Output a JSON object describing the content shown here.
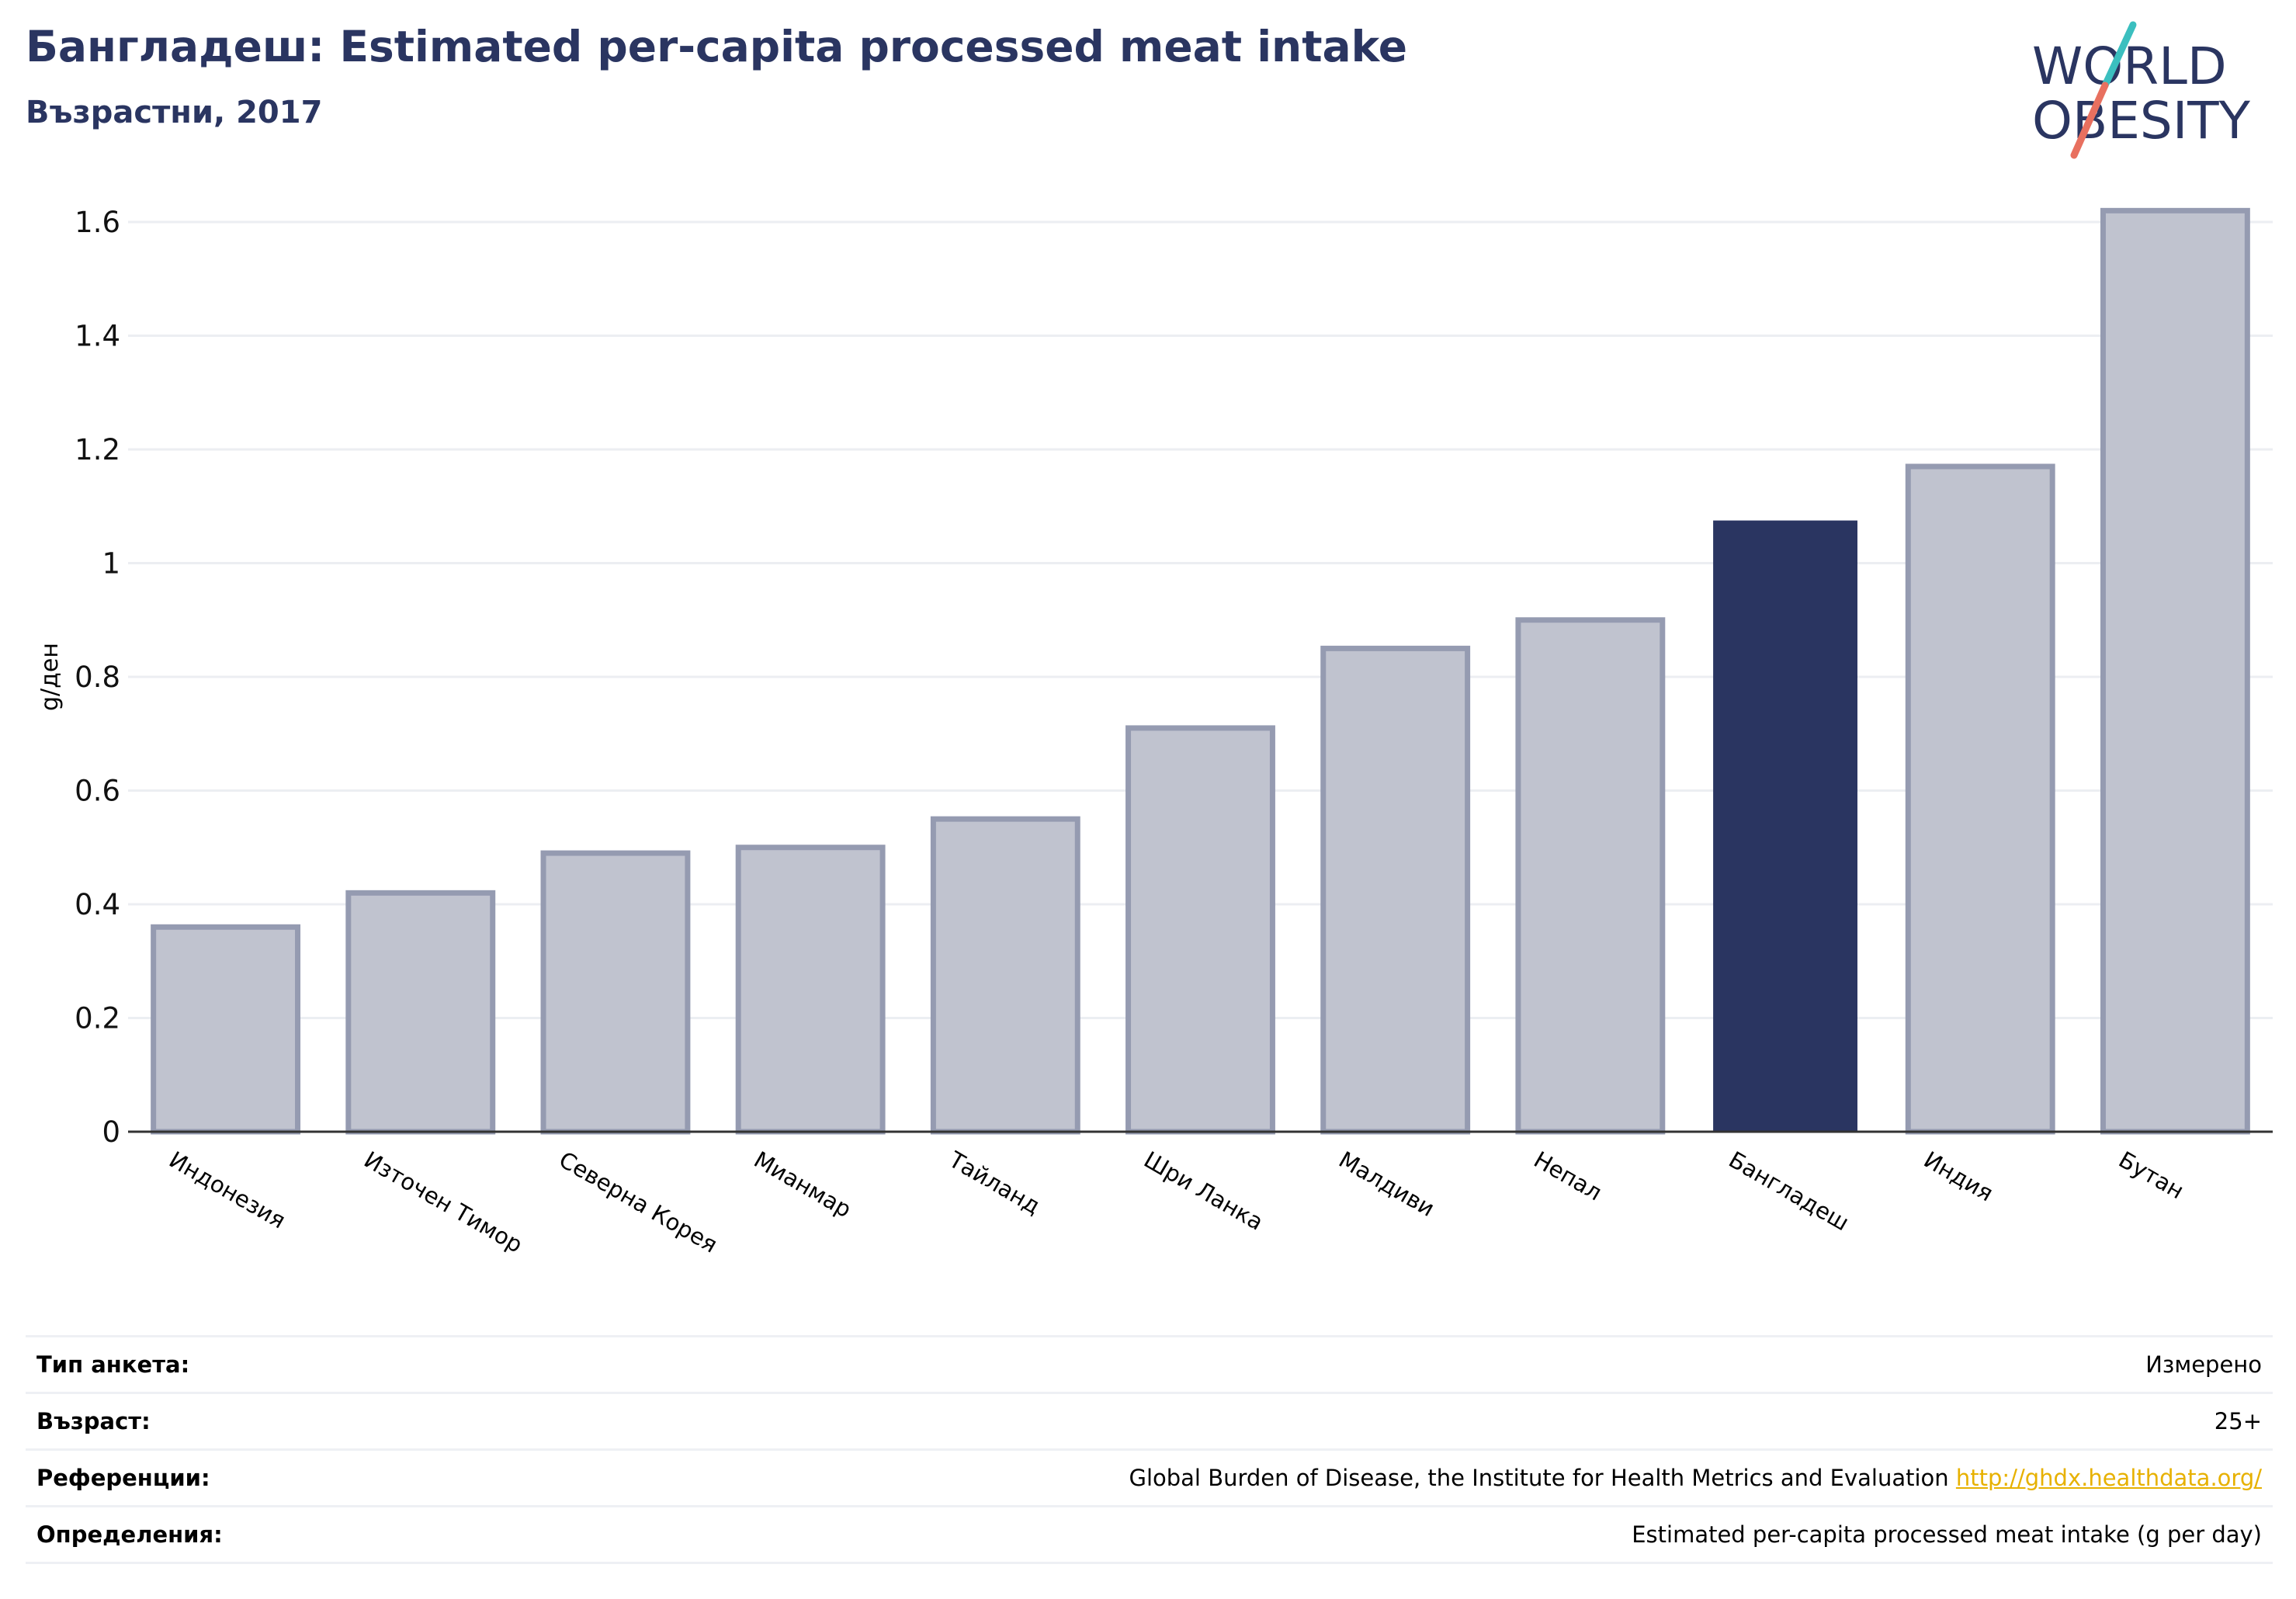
{
  "header": {
    "title": "Бангладеш: Estimated per-capita processed meat intake",
    "subtitle": "Възрастни, 2017"
  },
  "logo": {
    "line1": "WORLD",
    "line2": "OBESITY",
    "colors": {
      "text": "#2a3561",
      "slash_teal": "#3bbfbf",
      "slash_coral": "#e8705f"
    }
  },
  "chart_data": {
    "type": "bar",
    "categories": [
      "Индонезия",
      "Източен Тимор",
      "Северна Корея",
      "Мианмар",
      "Тайланд",
      "Шри Ланка",
      "Малдиви",
      "Непал",
      "Бангладеш",
      "Индия",
      "Бутан"
    ],
    "values": [
      0.36,
      0.42,
      0.49,
      0.5,
      0.55,
      0.71,
      0.85,
      0.9,
      1.075,
      1.17,
      1.62
    ],
    "highlight": "Бангладеш",
    "ylabel": "g/ден",
    "xlabel": "",
    "ylim": [
      0,
      1.65
    ],
    "yticks": [
      0,
      0.2,
      0.4,
      0.6,
      0.8,
      1,
      1.2,
      1.4,
      1.6
    ],
    "ytick_labels": [
      "0",
      "0.2",
      "0.4",
      "0.6",
      "0.8",
      "1",
      "1.2",
      "1.4",
      "1.6"
    ],
    "grid": true,
    "colors": {
      "bar": "#c0c3cf",
      "bar_edge": "#959bb1",
      "highlight": "#2a3561",
      "grid": "#eceef2"
    }
  },
  "info": [
    {
      "key": "Тип анкета:",
      "value": "Измерено"
    },
    {
      "key": "Възраст:",
      "value": "25+"
    },
    {
      "key": "Референции:",
      "value": "Global Burden of Disease, the Institute for Health Metrics and Evaluation",
      "link": "http://ghdx.healthdata.org/"
    },
    {
      "key": "Определения:",
      "value": "Estimated per-capita processed meat intake (g per day)"
    }
  ]
}
